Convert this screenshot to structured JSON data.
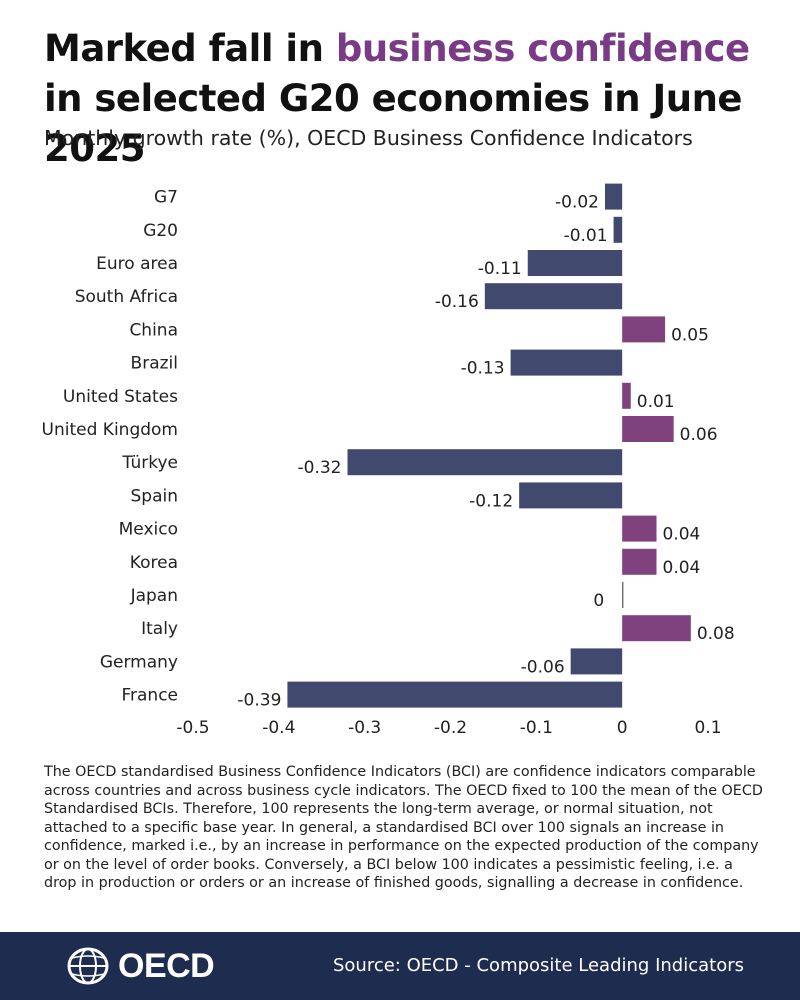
{
  "header": {
    "title_pre": "Marked fall in ",
    "title_highlight": "business confidence",
    "title_post": " in selected G20 economies in June 2025",
    "subtitle": "Monthly growth rate (%), OECD Business Confidence Indicators"
  },
  "chart_data": {
    "type": "bar",
    "orientation": "horizontal",
    "title": "Marked fall in business confidence in selected G20 economies in June 2025",
    "subtitle": "Monthly growth rate (%), OECD Business Confidence Indicators",
    "categories": [
      "G7",
      "G20",
      "Euro area",
      "South Africa",
      "China",
      "Brazil",
      "United States",
      "United Kingdom",
      "Türkye",
      "Spain",
      "Mexico",
      "Korea",
      "Japan",
      "Italy",
      "Germany",
      "France"
    ],
    "values": [
      -0.02,
      -0.01,
      -0.11,
      -0.16,
      0.05,
      -0.13,
      0.01,
      0.06,
      -0.32,
      -0.12,
      0.04,
      0.04,
      0,
      0.08,
      -0.06,
      -0.39
    ],
    "value_labels": [
      "-0.02",
      "-0.01",
      "-0.11",
      "-0.16",
      "0.05",
      "-0.13",
      "0.01",
      "0.06",
      "-0.32",
      "-0.12",
      "0.04",
      "0.04",
      "0",
      "0.08",
      "-0.06",
      "-0.39"
    ],
    "xlim": [
      -0.5,
      0.1
    ],
    "xticks": [
      -0.5,
      -0.4,
      -0.3,
      -0.2,
      -0.1,
      0,
      0.1
    ],
    "xtick_labels": [
      "-0.5",
      "-0.4",
      "-0.3",
      "-0.2",
      "-0.1",
      "0",
      "0.1"
    ],
    "xlabel": "",
    "ylabel": "",
    "grid": false,
    "colors": {
      "negative": "#414a6e",
      "positive": "#80427f"
    }
  },
  "footnote": "The OECD standardised Business Confidence Indicators (BCI) are confidence indicators comparable across countries and across business cycle indicators. The OECD fixed to 100 the mean of the OECD Standardised BCIs. Therefore, 100 represents the long-term average, or normal situation, not attached to a specific base year. In general, a standardised BCI over 100 signals an increase in confidence, marked i.e., by an increase in performance on the expected production of the company or on the level of order books. Conversely, a BCI below 100 indicates a pessimistic feeling, i.e. a drop in production or orders or an increase of finished goods, signalling a decrease in confidence.",
  "footer": {
    "logo_text": "OECD",
    "source": "Source: OECD - Composite Leading Indicators",
    "background": "#1e2d4f"
  }
}
